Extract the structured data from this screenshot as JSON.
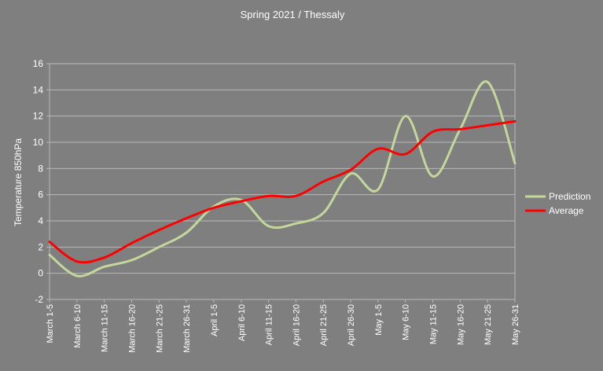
{
  "chart_data": {
    "type": "line",
    "title": "Spring 2021 / Thessaly",
    "xlabel": "",
    "ylabel": "Temperature 850hPa",
    "ylim": [
      -2,
      16
    ],
    "yticks": [
      -2,
      0,
      2,
      4,
      6,
      8,
      10,
      12,
      14,
      16
    ],
    "grid": true,
    "legend_position": "right",
    "categories": [
      "March 1-5",
      "March 6-10",
      "March 11-15",
      "March 16-20",
      "March 21-25",
      "March 26-31",
      "April 1-5",
      "April 6-10",
      "April 11-15",
      "April 16-20",
      "April 21-25",
      "April 26-30",
      "May 1-5",
      "May 6-10",
      "May 11-15",
      "May 16-20",
      "May 21-25",
      "May 26-31"
    ],
    "series": [
      {
        "name": "Prediction",
        "color": "#c4d79b",
        "values": [
          1.4,
          -0.2,
          0.5,
          1.0,
          2.0,
          3.1,
          5.1,
          5.6,
          3.6,
          3.8,
          4.6,
          7.6,
          6.4,
          12.0,
          7.4,
          11.0,
          14.6,
          8.4
        ]
      },
      {
        "name": "Average",
        "color": "#ff0000",
        "values": [
          2.4,
          0.9,
          1.2,
          2.3,
          3.3,
          4.2,
          5.0,
          5.5,
          5.9,
          5.9,
          7.0,
          7.9,
          9.5,
          9.1,
          10.8,
          11.0,
          11.3,
          11.6
        ]
      }
    ]
  },
  "colors": {
    "background": "#7f7f7f",
    "gridline": "#b8b8b8",
    "text": "#ffffff"
  }
}
